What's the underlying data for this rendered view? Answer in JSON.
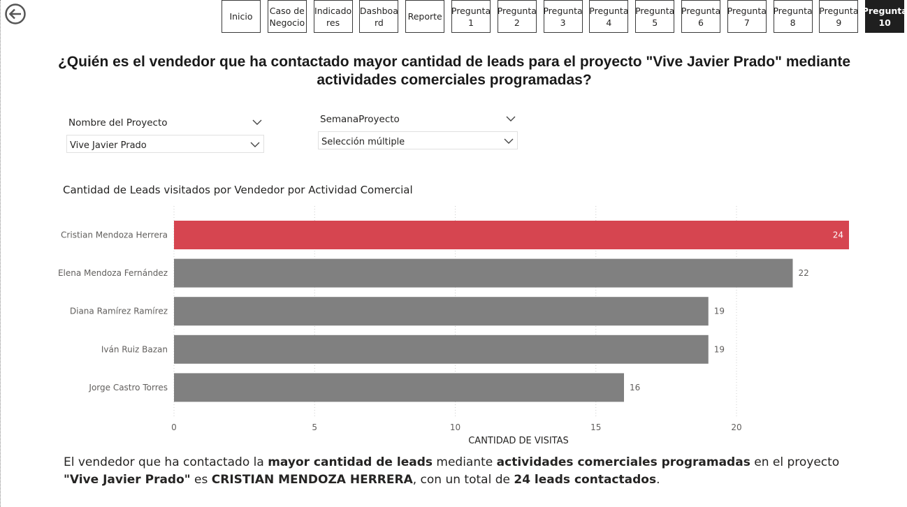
{
  "nav": {
    "buttons": [
      {
        "label": "Inicio",
        "active": false
      },
      {
        "label": "Caso de\nNegocio",
        "active": false
      },
      {
        "label": "Indicado\nres",
        "active": false
      },
      {
        "label": "Dashboa\nrd",
        "active": false
      },
      {
        "label": "Reporte",
        "active": false
      },
      {
        "label": "Pregunta\n1",
        "active": false
      },
      {
        "label": "Pregunta\n2",
        "active": false
      },
      {
        "label": "Pregunta\n3",
        "active": false
      },
      {
        "label": "Pregunta\n4",
        "active": false
      },
      {
        "label": "Pregunta\n5",
        "active": false
      },
      {
        "label": "Pregunta\n6",
        "active": false
      },
      {
        "label": "Pregunta\n7",
        "active": false
      },
      {
        "label": "Pregunta\n8",
        "active": false
      },
      {
        "label": "Pregunta\n9",
        "active": false
      },
      {
        "label": "Pregunta\n10",
        "active": true
      }
    ]
  },
  "page_title": "¿Quién es el vendedor que ha contactado mayor cantidad de leads para el proyecto \"Vive Javier Prado\" mediante actividades comerciales programadas?",
  "slicers": {
    "proyecto": {
      "label": "Nombre del Proyecto",
      "value": "Vive Javier Prado"
    },
    "semana": {
      "label": "SemanaProyecto",
      "value": "Selección múltiple"
    }
  },
  "colors": {
    "highlight": "#d64550",
    "bar": "#808080",
    "gridline": "#cccccc"
  },
  "chart_data": {
    "type": "bar",
    "orientation": "horizontal",
    "title": "Cantidad de Leads visitados por Vendedor por Actividad Comercial",
    "xlabel": "CANTIDAD DE VISITAS",
    "ylabel": "",
    "categories": [
      "Cristian Mendoza Herrera",
      "Elena Mendoza Fernández",
      "Diana Ramírez Ramírez",
      "Iván Ruiz Bazan",
      "Jorge Castro Torres"
    ],
    "values": [
      24,
      22,
      19,
      19,
      16
    ],
    "highlighted": "Cristian Mendoza Herrera",
    "xlim": [
      0,
      24
    ],
    "xticks": [
      0,
      5,
      10,
      15,
      20
    ],
    "grid": true,
    "legend": "none"
  },
  "summary": {
    "p1": "El vendedor que ha contactado la ",
    "b1": "mayor cantidad de leads",
    "p2": " mediante ",
    "b2": "actividades comerciales programadas",
    "p3": " en el proyecto ",
    "b3": "\"Vive Javier Prado\"",
    "p4": " es ",
    "b4": "CRISTIAN MENDOZA HERRERA",
    "p5": ", con un total de ",
    "b5": "24 leads contactados",
    "p6": "."
  }
}
